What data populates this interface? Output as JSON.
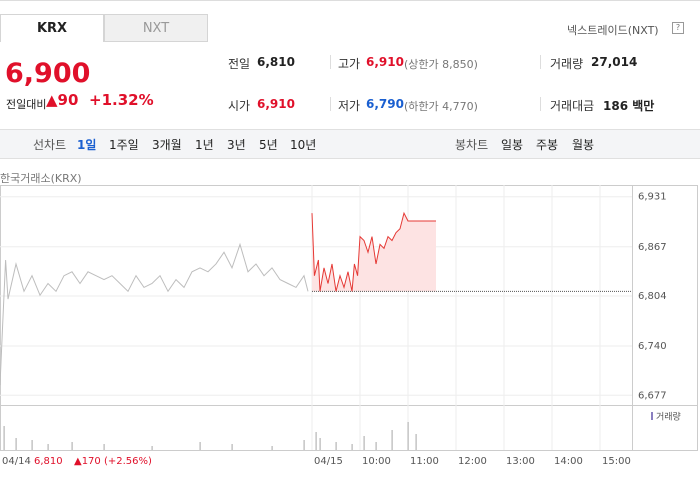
{
  "tabs": [
    "KRX",
    "NXT"
  ],
  "exchange_link": "넥스트레이드(NXT)",
  "help_icon": "?",
  "quote": {
    "price": "6,900",
    "change_label": "전일대비",
    "change": "▲90",
    "change_rate": "+1.32%"
  },
  "stats": [
    [
      {
        "label": "전일",
        "value": "6,810"
      },
      {
        "label": "고가",
        "value": "6,910",
        "note": "(상한가 8,850)"
      },
      {
        "label": "거래량",
        "value": "27,014"
      }
    ],
    [
      {
        "label": "시가",
        "value": "6,910"
      },
      {
        "label": "저가",
        "value": "6,790",
        "note": "(하한가 4,770)"
      },
      {
        "label": "거래대금",
        "value": "186 백만"
      }
    ]
  ],
  "periods": {
    "line_label": "선차트",
    "line": [
      "1일",
      "1주일",
      "3개월",
      "1년",
      "3년",
      "5년",
      "10년"
    ],
    "candle_label": "봉차트",
    "candle": [
      "일봉",
      "주봉",
      "월봉"
    ]
  },
  "source": "한국거래소(KRX)",
  "chart_data": {
    "type": "line",
    "xlim": [
      -39,
      40
    ],
    "xticks": [
      {
        "value": -39,
        "label": "04/14"
      },
      {
        "value": 0,
        "label": "04/15"
      },
      {
        "value": 6,
        "label": "10:00"
      },
      {
        "value": 12,
        "label": "11:00"
      },
      {
        "value": 18,
        "label": "12:00"
      },
      {
        "value": 24,
        "label": "13:00"
      },
      {
        "value": 30,
        "label": "14:00"
      },
      {
        "value": 36,
        "label": "15:00"
      }
    ],
    "ylim": [
      6671,
      6946
    ],
    "yticks": [
      {
        "value": 6931,
        "label": "6,931"
      },
      {
        "value": 6867,
        "label": "6,867"
      },
      {
        "value": 6804,
        "label": "6,804"
      },
      {
        "value": 6740,
        "label": "6,740"
      },
      {
        "value": 6677,
        "label": "6,677"
      }
    ],
    "grid": true,
    "reference_line": 6810,
    "series": [
      {
        "color": "#bdbdbd",
        "x": [
          -39,
          -38.7,
          -38.3,
          -38,
          -37,
          -36,
          -35,
          -34,
          -33,
          -32,
          -31,
          -30,
          -29,
          -28,
          -27,
          -26,
          -25,
          -24,
          -23,
          -22,
          -21,
          -20,
          -19,
          -18,
          -17,
          -16,
          -15,
          -14,
          -13,
          -12,
          -11,
          -10,
          -9,
          -8,
          -7,
          -6,
          -5,
          -4,
          -3,
          -2,
          -1,
          -0.5
        ],
        "values": [
          6690,
          6760,
          6850,
          6800,
          6845,
          6810,
          6830,
          6805,
          6820,
          6810,
          6830,
          6835,
          6820,
          6835,
          6830,
          6825,
          6830,
          6820,
          6810,
          6830,
          6815,
          6820,
          6830,
          6810,
          6825,
          6815,
          6835,
          6840,
          6835,
          6845,
          6860,
          6840,
          6870,
          6835,
          6845,
          6830,
          6840,
          6825,
          6820,
          6815,
          6830,
          6810
        ]
      },
      {
        "color": "#e53935",
        "fill": "#fde3e3",
        "x": [
          0,
          0.3,
          0.8,
          1,
          1.5,
          2,
          2.5,
          3,
          3.5,
          4,
          4.5,
          5,
          5.3,
          5.7,
          6,
          6.5,
          7,
          7.5,
          8,
          8.5,
          9,
          9.5,
          10,
          10.5,
          11,
          11.5,
          12,
          15.5
        ],
        "values": [
          6910,
          6830,
          6850,
          6810,
          6840,
          6820,
          6845,
          6810,
          6830,
          6815,
          6835,
          6810,
          6845,
          6830,
          6880,
          6875,
          6860,
          6880,
          6845,
          6870,
          6865,
          6880,
          6875,
          6885,
          6890,
          6910,
          6900,
          6900
        ]
      }
    ],
    "volume": {
      "name": "거래량",
      "color": "#b5b5b5",
      "ylim": [
        0,
        100
      ],
      "x": [
        -38.5,
        -37,
        -35,
        -33,
        -30,
        -26,
        -20,
        -14,
        -10,
        -5,
        -1,
        0.5,
        1,
        3,
        5,
        6.5,
        8,
        10,
        12,
        13
      ],
      "values": [
        60,
        30,
        25,
        15,
        20,
        15,
        10,
        20,
        15,
        10,
        25,
        45,
        30,
        20,
        15,
        35,
        20,
        50,
        70,
        40
      ]
    }
  },
  "footer": {
    "close": "6,810",
    "change": "▲170 (+2.56%)"
  }
}
